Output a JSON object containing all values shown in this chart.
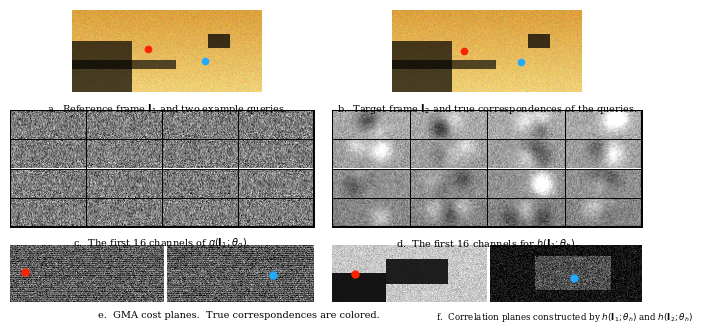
{
  "background_color": "#ffffff",
  "caption_a": "a.  Reference frame $\\mathbf{I}_1$ and two example queries.",
  "caption_b": "b.  Target frame $\\mathbf{I}_2$ and true correspondences of the queries.",
  "caption_c": "c.  The first 16 channels of $g(\\mathbf{I}_1; \\theta_g)$.",
  "caption_d": "d.  The first 16 channels for $h(\\mathbf{I}_1; \\theta_h)$.",
  "caption_e": "e.  GMA cost planes.  True correspondences are colored.",
  "caption_f": "f.  Correlation planes constructed by $h(\\mathbf{I}_1; \\theta_h)$ and $h(\\mathbf{I}_2; \\theta_h)$",
  "grid_color": "#000000",
  "font_size": 7.0,
  "red_dot_color": "#ff2200",
  "blue_dot_color": "#22aaff",
  "fig_w": 6.4,
  "fig_h": 3.17,
  "n_grid_cols": 4,
  "n_grid_rows": 4
}
